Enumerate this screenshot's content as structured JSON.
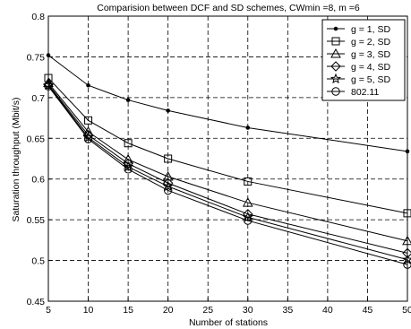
{
  "chart_data": {
    "type": "line",
    "title": "Comparision between DCF and SD schemes, CWmin =8, m =6",
    "xlabel": "Number of stations",
    "ylabel": "Saturation throughput (Mbit/s)",
    "xlim": [
      5,
      50
    ],
    "ylim": [
      0.45,
      0.8
    ],
    "xticks": [
      "5",
      "10",
      "15",
      "20",
      "25",
      "30",
      "35",
      "40",
      "45",
      "50"
    ],
    "yticks": [
      "0.45",
      "0.5",
      "0.55",
      "0.6",
      "0.65",
      "0.7",
      "0.75",
      "0.8"
    ],
    "grid": true,
    "legend_position": "top-right",
    "x": [
      5,
      10,
      15,
      20,
      30,
      50
    ],
    "series": [
      {
        "name": "g = 1, SD",
        "marker": "dot",
        "values": [
          0.752,
          0.715,
          0.697,
          0.684,
          0.663,
          0.634
        ]
      },
      {
        "name": "g = 2, SD",
        "marker": "square",
        "values": [
          0.724,
          0.672,
          0.644,
          0.625,
          0.597,
          0.558
        ]
      },
      {
        "name": "g = 3, SD",
        "marker": "triangle",
        "values": [
          0.718,
          0.658,
          0.624,
          0.603,
          0.571,
          0.524
        ]
      },
      {
        "name": "g = 4, SD",
        "marker": "diamond",
        "values": [
          0.716,
          0.654,
          0.619,
          0.595,
          0.557,
          0.509
        ]
      },
      {
        "name": "g = 5, SD",
        "marker": "star",
        "values": [
          0.715,
          0.651,
          0.615,
          0.591,
          0.553,
          0.501
        ]
      },
      {
        "name": "802.11",
        "marker": "circle",
        "values": [
          0.714,
          0.649,
          0.612,
          0.586,
          0.549,
          0.495
        ]
      }
    ]
  }
}
